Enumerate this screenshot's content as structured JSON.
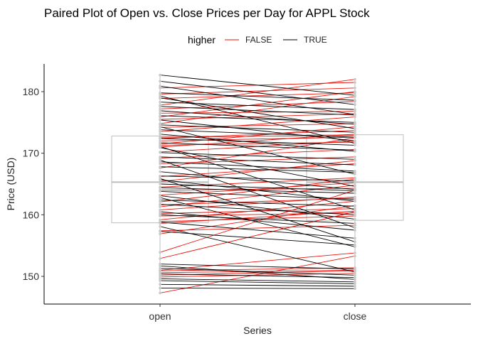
{
  "chart_data": {
    "type": "line",
    "title": "Paired Plot of Open vs. Close Prices per Day for APPL Stock",
    "xlabel": "Series",
    "ylabel": "Price (USD)",
    "categories": [
      "open",
      "close"
    ],
    "yticks": [
      150,
      160,
      170,
      180
    ],
    "ylim": [
      145.5,
      184.5
    ],
    "grid": false,
    "legend": {
      "title": "higher",
      "position": "top",
      "entries": [
        {
          "label": "FALSE",
          "color": "#e8140c"
        },
        {
          "label": "TRUE",
          "color": "#000000"
        }
      ]
    },
    "boxplots": [
      {
        "category": "open",
        "min": 147.3,
        "q1": 158.7,
        "median": 165.3,
        "q3": 172.8,
        "max": 182.7
      },
      {
        "category": "close",
        "min": 148.0,
        "q1": 159.1,
        "median": 165.3,
        "q3": 173.0,
        "max": 182.0
      }
    ],
    "pairs": {
      "FALSE": [
        [
          147.3,
          153.3
        ],
        [
          149.9,
          150.5
        ],
        [
          150.2,
          150.9
        ],
        [
          150.6,
          151.0
        ],
        [
          151.0,
          153.8
        ],
        [
          152.9,
          160.5
        ],
        [
          153.9,
          164.0
        ],
        [
          156.9,
          161.5
        ],
        [
          158.6,
          160.6
        ],
        [
          158.9,
          159.8
        ],
        [
          159.2,
          162.2
        ],
        [
          159.8,
          160.3
        ],
        [
          160.2,
          161.0
        ],
        [
          160.8,
          162.9
        ],
        [
          161.3,
          164.8
        ],
        [
          162.1,
          165.8
        ],
        [
          163.2,
          165.2
        ],
        [
          164.0,
          164.3
        ],
        [
          164.5,
          166.0
        ],
        [
          165.4,
          168.8
        ],
        [
          166.2,
          168.3
        ],
        [
          167.6,
          172.5
        ],
        [
          168.3,
          169.4
        ],
        [
          169.2,
          170.6
        ],
        [
          170.2,
          172.0
        ],
        [
          171.0,
          173.1
        ],
        [
          171.5,
          174.3
        ],
        [
          172.0,
          172.6
        ],
        [
          172.4,
          173.7
        ],
        [
          173.5,
          175.9
        ],
        [
          174.2,
          174.8
        ],
        [
          174.8,
          179.2
        ],
        [
          175.5,
          176.4
        ],
        [
          175.9,
          180.0
        ],
        [
          176.5,
          176.8
        ],
        [
          177.2,
          178.4
        ],
        [
          177.8,
          182.0
        ],
        [
          178.9,
          179.8
        ],
        [
          179.6,
          180.6
        ],
        [
          180.6,
          181.5
        ],
        [
          171.3,
          171.8
        ],
        [
          172.6,
          172.9
        ],
        [
          161.6,
          162.7
        ],
        [
          157.4,
          158.3
        ],
        [
          150.9,
          151.4
        ]
      ],
      "TRUE": [
        [
          148.1,
          148.0
        ],
        [
          148.7,
          148.4
        ],
        [
          149.3,
          148.8
        ],
        [
          149.6,
          149.1
        ],
        [
          150.4,
          149.8
        ],
        [
          151.3,
          150.2
        ],
        [
          151.7,
          149.5
        ],
        [
          152.0,
          151.2
        ],
        [
          157.3,
          155.1
        ],
        [
          158.8,
          156.2
        ],
        [
          160.0,
          158.6
        ],
        [
          160.5,
          157.5
        ],
        [
          161.7,
          160.0
        ],
        [
          162.4,
          161.4
        ],
        [
          163.1,
          159.3
        ],
        [
          163.8,
          162.5
        ],
        [
          164.4,
          163.5
        ],
        [
          165.0,
          163.9
        ],
        [
          165.7,
          162.2
        ],
        [
          166.3,
          165.5
        ],
        [
          167.0,
          164.1
        ],
        [
          167.8,
          166.9
        ],
        [
          168.6,
          167.1
        ],
        [
          169.4,
          168.1
        ],
        [
          170.1,
          169.0
        ],
        [
          170.9,
          164.6
        ],
        [
          171.7,
          170.5
        ],
        [
          172.4,
          171.3
        ],
        [
          173.1,
          170.3
        ],
        [
          173.8,
          172.6
        ],
        [
          174.6,
          173.4
        ],
        [
          175.4,
          172.0
        ],
        [
          176.1,
          175.0
        ],
        [
          176.9,
          174.7
        ],
        [
          177.6,
          176.2
        ],
        [
          178.3,
          177.1
        ],
        [
          179.0,
          174.0
        ],
        [
          179.8,
          178.6
        ],
        [
          180.9,
          176.3
        ],
        [
          181.7,
          177.9
        ],
        [
          182.7,
          179.4
        ],
        [
          174.3,
          166.6
        ],
        [
          171.1,
          160.8
        ],
        [
          168.9,
          157.9
        ],
        [
          165.9,
          155.6
        ],
        [
          162.8,
          154.8
        ],
        [
          158.1,
          150.7
        ],
        [
          179.3,
          171.6
        ]
      ]
    }
  }
}
